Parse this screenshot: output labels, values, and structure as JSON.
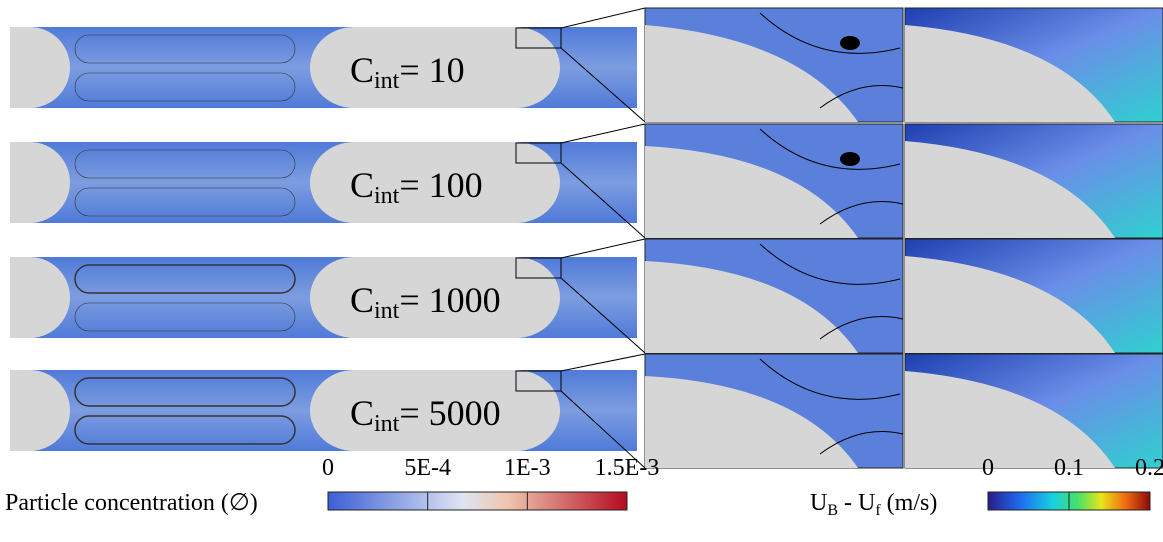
{
  "panels": [
    {
      "symbol": "C",
      "subscript": "int",
      "value": "= 10"
    },
    {
      "symbol": "C",
      "subscript": "int",
      "value": "= 100"
    },
    {
      "symbol": "C",
      "subscript": "int",
      "value": "= 1000"
    },
    {
      "symbol": "C",
      "subscript": "int",
      "value": "= 5000"
    }
  ],
  "colorbars": [
    {
      "label": "Particle concentration (∅)",
      "ticks": [
        "0",
        "5E-4",
        "1E-3",
        "1.5E-3"
      ]
    },
    {
      "label_parts": [
        "U",
        "B",
        " - U",
        "f",
        " (m/s)"
      ],
      "ticks": [
        "0",
        "0.1",
        "0.2"
      ]
    }
  ]
}
